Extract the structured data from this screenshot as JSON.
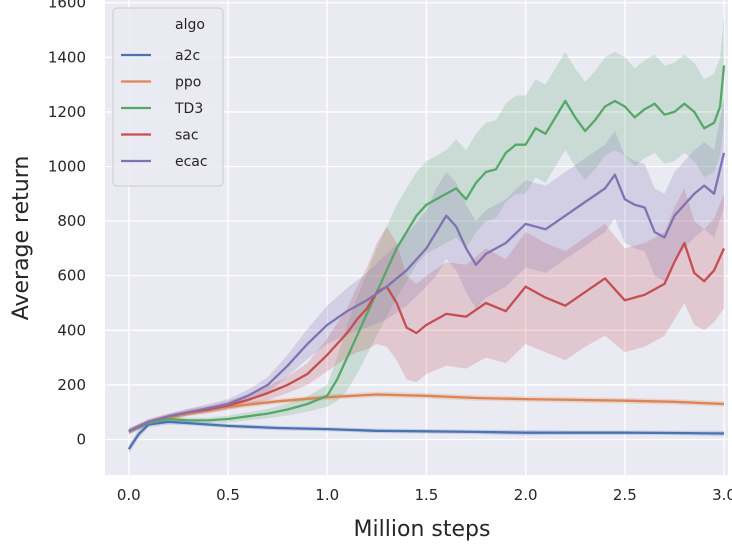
{
  "chart_data": {
    "type": "line",
    "title": "",
    "xlabel": "Million steps",
    "ylabel": "Average return",
    "xlim": [
      -0.12,
      3.02
    ],
    "ylim": [
      -130,
      1610
    ],
    "xticks": [
      0.0,
      0.5,
      1.0,
      1.5,
      2.0,
      2.5,
      3.0
    ],
    "xtick_labels": [
      "0.0",
      "0.5",
      "1.0",
      "1.5",
      "2.0",
      "2.5",
      "3.0"
    ],
    "yticks": [
      0,
      200,
      400,
      600,
      800,
      1000,
      1200,
      1400,
      1600
    ],
    "ytick_labels": [
      "0",
      "200",
      "400",
      "600",
      "800",
      "1000",
      "1200",
      "1400",
      "1600"
    ],
    "grid": true,
    "legend": {
      "title": "algo",
      "position": "top-left"
    },
    "series": [
      {
        "name": "a2c",
        "color": "#4c72b0",
        "x": [
          0.0,
          0.05,
          0.1,
          0.2,
          0.3,
          0.5,
          0.75,
          1.0,
          1.25,
          1.5,
          1.75,
          2.0,
          2.25,
          2.5,
          2.75,
          3.0
        ],
        "y": [
          -35,
          20,
          55,
          65,
          60,
          50,
          42,
          38,
          32,
          30,
          28,
          25,
          25,
          25,
          24,
          22
        ],
        "lower": [
          -50,
          5,
          45,
          55,
          52,
          42,
          34,
          30,
          24,
          22,
          20,
          15,
          17,
          17,
          16,
          12
        ],
        "upper": [
          -20,
          35,
          65,
          75,
          68,
          58,
          50,
          46,
          40,
          38,
          36,
          35,
          33,
          33,
          32,
          32
        ]
      },
      {
        "name": "ppo",
        "color": "#dd8452",
        "x": [
          0.0,
          0.1,
          0.2,
          0.3,
          0.5,
          0.75,
          1.0,
          1.25,
          1.5,
          1.75,
          2.0,
          2.25,
          2.5,
          2.75,
          3.0
        ],
        "y": [
          30,
          60,
          80,
          95,
          120,
          140,
          155,
          165,
          160,
          152,
          148,
          145,
          142,
          138,
          130
        ],
        "lower": [
          20,
          50,
          70,
          85,
          110,
          130,
          145,
          155,
          150,
          142,
          138,
          135,
          132,
          128,
          120
        ],
        "upper": [
          40,
          70,
          90,
          105,
          130,
          150,
          165,
          175,
          170,
          162,
          158,
          155,
          152,
          148,
          140
        ]
      },
      {
        "name": "TD3",
        "color": "#55a868",
        "x": [
          0.0,
          0.1,
          0.2,
          0.3,
          0.4,
          0.5,
          0.6,
          0.7,
          0.8,
          0.9,
          1.0,
          1.05,
          1.1,
          1.15,
          1.2,
          1.25,
          1.3,
          1.35,
          1.4,
          1.45,
          1.5,
          1.55,
          1.6,
          1.65,
          1.7,
          1.75,
          1.8,
          1.85,
          1.9,
          1.95,
          2.0,
          2.05,
          2.1,
          2.15,
          2.2,
          2.25,
          2.3,
          2.35,
          2.4,
          2.45,
          2.5,
          2.55,
          2.6,
          2.65,
          2.7,
          2.75,
          2.8,
          2.85,
          2.9,
          2.95,
          2.98,
          3.0
        ],
        "y": [
          30,
          60,
          75,
          70,
          70,
          75,
          85,
          95,
          110,
          130,
          160,
          220,
          300,
          380,
          460,
          540,
          620,
          700,
          760,
          820,
          860,
          880,
          900,
          920,
          880,
          940,
          980,
          990,
          1050,
          1080,
          1080,
          1140,
          1120,
          1180,
          1240,
          1180,
          1130,
          1170,
          1220,
          1240,
          1220,
          1180,
          1210,
          1230,
          1190,
          1200,
          1230,
          1200,
          1140,
          1160,
          1220,
          1370
        ],
        "lower": [
          20,
          50,
          65,
          60,
          60,
          62,
          70,
          78,
          88,
          102,
          120,
          140,
          180,
          240,
          310,
          380,
          450,
          520,
          580,
          640,
          680,
          700,
          720,
          740,
          700,
          760,
          800,
          810,
          870,
          900,
          900,
          960,
          940,
          1000,
          1060,
          1000,
          950,
          990,
          1040,
          1060,
          1040,
          1000,
          1030,
          1050,
          1010,
          1020,
          1050,
          1020,
          960,
          980,
          1040,
          1150
        ],
        "upper": [
          40,
          70,
          85,
          80,
          80,
          88,
          100,
          112,
          132,
          158,
          200,
          300,
          420,
          520,
          610,
          700,
          780,
          860,
          920,
          980,
          1020,
          1040,
          1060,
          1100,
          1060,
          1120,
          1160,
          1170,
          1230,
          1260,
          1260,
          1320,
          1300,
          1360,
          1420,
          1360,
          1310,
          1350,
          1400,
          1420,
          1400,
          1360,
          1390,
          1410,
          1370,
          1380,
          1410,
          1380,
          1320,
          1340,
          1400,
          1560
        ]
      },
      {
        "name": "sac",
        "color": "#c44e52",
        "x": [
          0.0,
          0.1,
          0.2,
          0.3,
          0.4,
          0.5,
          0.6,
          0.7,
          0.8,
          0.9,
          1.0,
          1.1,
          1.15,
          1.2,
          1.25,
          1.3,
          1.35,
          1.4,
          1.45,
          1.5,
          1.6,
          1.7,
          1.8,
          1.9,
          2.0,
          2.1,
          2.2,
          2.3,
          2.4,
          2.5,
          2.6,
          2.7,
          2.75,
          2.8,
          2.85,
          2.9,
          2.95,
          3.0
        ],
        "y": [
          30,
          65,
          85,
          100,
          110,
          125,
          145,
          170,
          200,
          240,
          310,
          390,
          440,
          480,
          540,
          560,
          500,
          410,
          390,
          420,
          460,
          450,
          500,
          470,
          560,
          520,
          490,
          540,
          590,
          510,
          530,
          570,
          650,
          720,
          610,
          580,
          620,
          700
        ],
        "lower": [
          20,
          55,
          75,
          88,
          96,
          108,
          125,
          145,
          170,
          200,
          250,
          300,
          320,
          330,
          350,
          340,
          290,
          220,
          210,
          240,
          270,
          260,
          300,
          280,
          350,
          320,
          290,
          340,
          380,
          320,
          340,
          380,
          440,
          500,
          420,
          400,
          430,
          480
        ],
        "upper": [
          40,
          75,
          95,
          112,
          124,
          142,
          165,
          195,
          230,
          280,
          370,
          480,
          560,
          630,
          720,
          780,
          720,
          600,
          570,
          600,
          650,
          640,
          700,
          660,
          760,
          720,
          690,
          740,
          790,
          700,
          720,
          760,
          850,
          920,
          800,
          770,
          810,
          900
        ]
      },
      {
        "name": "ecac",
        "color": "#8172b3",
        "x": [
          0.0,
          0.1,
          0.2,
          0.3,
          0.4,
          0.5,
          0.6,
          0.7,
          0.8,
          0.9,
          1.0,
          1.1,
          1.2,
          1.3,
          1.4,
          1.5,
          1.55,
          1.6,
          1.65,
          1.7,
          1.75,
          1.8,
          1.9,
          2.0,
          2.1,
          2.2,
          2.3,
          2.4,
          2.45,
          2.5,
          2.55,
          2.6,
          2.65,
          2.7,
          2.75,
          2.8,
          2.85,
          2.9,
          2.95,
          3.0
        ],
        "y": [
          30,
          65,
          85,
          100,
          115,
          130,
          160,
          200,
          270,
          350,
          420,
          470,
          510,
          560,
          620,
          700,
          760,
          820,
          780,
          700,
          640,
          680,
          720,
          790,
          770,
          820,
          870,
          920,
          970,
          880,
          860,
          850,
          760,
          740,
          820,
          860,
          900,
          930,
          900,
          1050
        ],
        "lower": [
          20,
          55,
          75,
          88,
          100,
          112,
          138,
          172,
          230,
          295,
          350,
          385,
          410,
          440,
          490,
          560,
          600,
          660,
          620,
          540,
          480,
          520,
          560,
          630,
          610,
          660,
          710,
          760,
          810,
          720,
          700,
          690,
          600,
          580,
          660,
          700,
          740,
          770,
          740,
          850
        ],
        "upper": [
          40,
          75,
          95,
          112,
          130,
          148,
          182,
          228,
          310,
          405,
          490,
          555,
          610,
          680,
          750,
          840,
          920,
          980,
          940,
          860,
          800,
          840,
          880,
          950,
          930,
          980,
          1030,
          1080,
          1130,
          1040,
          1020,
          1010,
          920,
          900,
          980,
          1020,
          1060,
          1090,
          1060,
          1250
        ]
      }
    ]
  }
}
